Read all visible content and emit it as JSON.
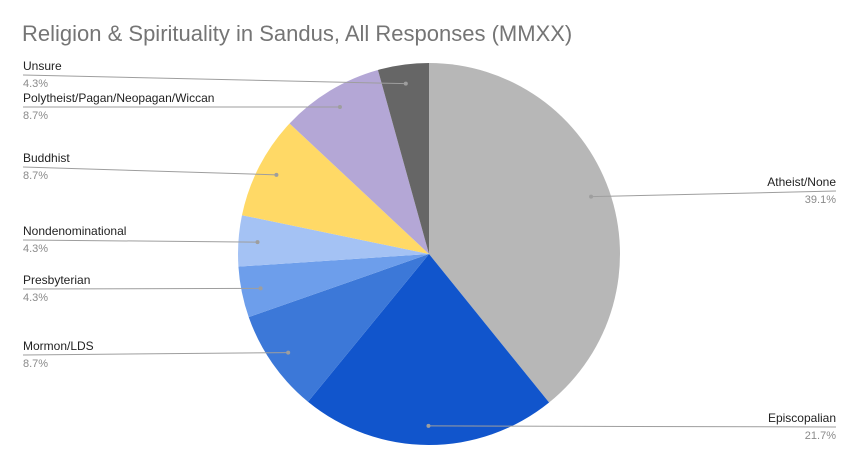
{
  "chart_data": {
    "type": "pie",
    "title": "Religion & Spirituality in Sandus, All Responses (MMXX)",
    "slices": [
      {
        "label": "Atheist/None",
        "value": 39.1,
        "percent_label": "39.1%",
        "color": "#b7b7b7"
      },
      {
        "label": "Episcopalian",
        "value": 21.7,
        "percent_label": "21.7%",
        "color": "#1155cc"
      },
      {
        "label": "Mormon/LDS",
        "value": 8.7,
        "percent_label": "8.7%",
        "color": "#3c78d8"
      },
      {
        "label": "Presbyterian",
        "value": 4.3,
        "percent_label": "4.3%",
        "color": "#6d9eeb"
      },
      {
        "label": "Nondenominational",
        "value": 4.3,
        "percent_label": "4.3%",
        "color": "#a4c2f4"
      },
      {
        "label": "Buddhist",
        "value": 8.7,
        "percent_label": "8.7%",
        "color": "#ffd966"
      },
      {
        "label": "Polytheist/Pagan/Neopagan/Wiccan",
        "value": 8.7,
        "percent_label": "8.7%",
        "color": "#b4a7d6"
      },
      {
        "label": "Unsure",
        "value": 4.3,
        "percent_label": "4.3%",
        "color": "#666666"
      }
    ],
    "start": "top",
    "direction": "clockwise",
    "label_style": "leader lines with name and percent"
  }
}
